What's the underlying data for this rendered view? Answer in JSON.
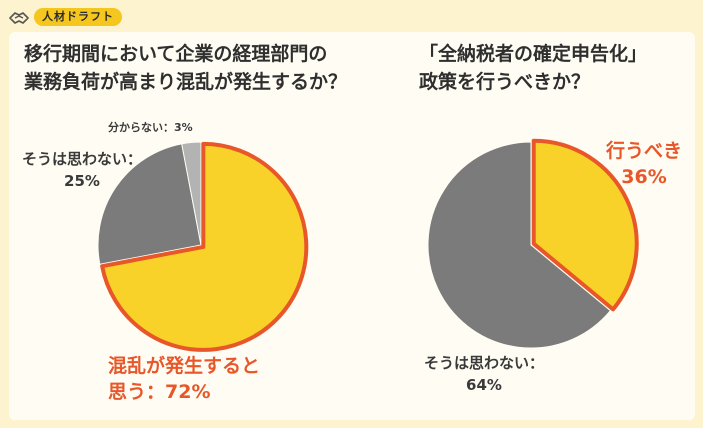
{
  "brand": {
    "name": "人材ドラフト"
  },
  "colors": {
    "background": "#fdf3cf",
    "highlight": "#f8d228",
    "highlight_border": "#e8572a",
    "other": "#7b7b7b",
    "minor": "#b3b3b3",
    "accent_text": "#e8572a"
  },
  "chart_data": [
    {
      "type": "pie",
      "title_lines": [
        "移行期間において企業の経理部門の",
        "業務負荷が高まり混乱が発生するか？"
      ],
      "slices": [
        {
          "label_lines": [
            "混乱が発生すると",
            "思う：72%"
          ],
          "value": 72,
          "color": "#f8d228",
          "highlight": true
        },
        {
          "label_lines": [
            "そうは思わない：",
            "25%"
          ],
          "value": 25,
          "color": "#7b7b7b",
          "highlight": false
        },
        {
          "label_lines": [
            "分からない：3%"
          ],
          "value": 3,
          "color": "#b3b3b3",
          "highlight": false
        }
      ]
    },
    {
      "type": "pie",
      "title_lines": [
        "「全納税者の確定申告化」",
        "政策を行うべきか？"
      ],
      "slices": [
        {
          "label_lines": [
            "行うべき",
            "36%"
          ],
          "value": 36,
          "color": "#f8d228",
          "highlight": true
        },
        {
          "label_lines": [
            "そうは思わない：",
            "64%"
          ],
          "value": 64,
          "color": "#7b7b7b",
          "highlight": false
        }
      ]
    }
  ]
}
